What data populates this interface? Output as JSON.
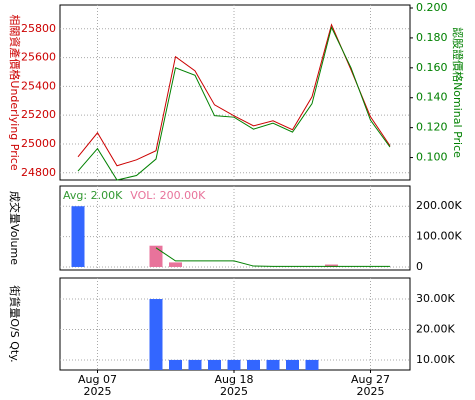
{
  "chart_data": [
    {
      "type": "line",
      "categories": [
        null,
        "Aug 07",
        null,
        null,
        null,
        null,
        null,
        null,
        "Aug 18",
        null,
        null,
        null,
        null,
        null,
        null,
        "Aug 27",
        null
      ],
      "category_years": [
        null,
        "2025",
        null,
        null,
        null,
        null,
        null,
        null,
        "2025",
        null,
        null,
        null,
        null,
        null,
        null,
        "2025",
        null
      ],
      "y_label": "相關資產價格Underlying Price",
      "y_label_color": "#cc0000",
      "y2_label": "認股證價格Nominal Price",
      "y2_label_color": "#008000",
      "ylim": [
        24750,
        25965
      ],
      "yticks": [
        24800,
        25000,
        25200,
        25400,
        25600,
        25800
      ],
      "y2lim": [
        0.085,
        0.202
      ],
      "y2ticks": [
        {
          "value": 0.1,
          "label": "0.100"
        },
        {
          "value": 0.12,
          "label": "0.120"
        },
        {
          "value": 0.14,
          "label": "0.140"
        },
        {
          "value": 0.16,
          "label": "0.160"
        },
        {
          "value": 0.18,
          "label": "0.180"
        },
        {
          "value": 0.2,
          "label": "0.200"
        }
      ],
      "grid": true,
      "series": [
        {
          "color": "#cc0000",
          "values": [
            24911,
            25078,
            24849,
            24890,
            24953,
            25606,
            25508,
            25272,
            25196,
            25126,
            25161,
            25099,
            25328,
            25828,
            25515,
            25189,
            24988
          ]
        },
        {
          "color": "#008000",
          "axis": "y2",
          "values": [
            0.091,
            0.106,
            0.085,
            0.088,
            0.099,
            0.16,
            0.155,
            0.128,
            0.127,
            0.119,
            0.123,
            0.117,
            0.136,
            0.187,
            0.16,
            0.125,
            0.107
          ]
        }
      ]
    },
    {
      "type": "bar",
      "y_label": "成交量Volume",
      "y_label_color": "#000000",
      "annotations": [
        {
          "text": "Avg: 2.00K",
          "color": "#339933"
        },
        {
          "text": "VOL: 200.00K",
          "color": "#e8739b"
        }
      ],
      "ylim": [
        -10000,
        266667
      ],
      "yticks": [
        0,
        {
          "value": 100000,
          "label": "100.00K"
        },
        {
          "value": 200000,
          "label": "200.00K"
        }
      ],
      "grid": true,
      "series": [
        {
          "colors": [
            "#3366ff",
            null,
            null,
            null,
            "#e8739b",
            "#e8739b",
            null,
            null,
            null,
            null,
            null,
            null,
            null,
            "#e8739b",
            null,
            null,
            null
          ],
          "values": [
            200000,
            null,
            null,
            null,
            70000,
            15000,
            null,
            null,
            null,
            null,
            null,
            null,
            null,
            8000,
            null,
            null,
            null
          ]
        },
        {
          "type": "line",
          "color": "#008000",
          "values": [
            null,
            null,
            null,
            null,
            63000,
            20000,
            20000,
            20000,
            20000,
            3000,
            2000,
            2000,
            2000,
            2000,
            2000,
            2000,
            2000
          ]
        }
      ]
    },
    {
      "type": "bar",
      "y_label": "街貨量O/S Qty.",
      "y_label_color": "#000000",
      "ylim": [
        6700,
        36900
      ],
      "yticks": [
        {
          "value": 10000,
          "label": "10.00K"
        },
        {
          "value": 20000,
          "label": "20.00K"
        },
        {
          "value": 30000,
          "label": "30.00K"
        }
      ],
      "grid": true,
      "series": [
        {
          "colors": [
            null,
            null,
            null,
            null,
            "#3366ff",
            "#3366ff",
            "#3366ff",
            "#3366ff",
            "#3366ff",
            "#3366ff",
            "#3366ff",
            "#3366ff",
            "#3366ff",
            null,
            null,
            null,
            null
          ],
          "values": [
            null,
            null,
            null,
            null,
            30000,
            10000,
            10000,
            10000,
            10000,
            10000,
            10000,
            10000,
            10000,
            null,
            null,
            null,
            null
          ]
        }
      ]
    }
  ]
}
